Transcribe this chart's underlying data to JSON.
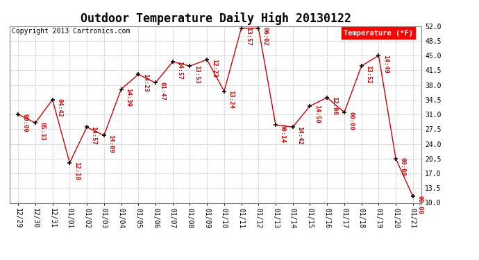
{
  "title": "Outdoor Temperature Daily High 20130122",
  "copyright": "Copyright 2013 Cartronics.com",
  "legend_label": "Temperature (°F)",
  "x_labels": [
    "12/29",
    "12/30",
    "12/31",
    "01/01",
    "01/02",
    "01/03",
    "01/04",
    "01/05",
    "01/06",
    "01/07",
    "01/08",
    "01/09",
    "01/10",
    "01/11",
    "01/12",
    "01/13",
    "01/14",
    "01/15",
    "01/16",
    "01/17",
    "01/18",
    "01/19",
    "01/20",
    "01/21"
  ],
  "y_values": [
    31.0,
    29.0,
    34.5,
    19.5,
    28.0,
    26.0,
    37.0,
    40.5,
    38.5,
    43.5,
    42.5,
    44.0,
    36.5,
    51.5,
    51.5,
    28.5,
    28.0,
    33.0,
    35.0,
    31.5,
    42.5,
    45.0,
    20.5,
    11.5
  ],
  "point_labels": [
    "00:00",
    "05:33",
    "04:42",
    "12:18",
    "14:57",
    "14:09",
    "14:39",
    "14:23",
    "01:47",
    "14:57",
    "13:53",
    "12:23",
    "13:24",
    "13:57",
    "06:02",
    "00:14",
    "14:42",
    "14:50",
    "12:06",
    "00:00",
    "13:52",
    "14:49",
    "00:00",
    "00:00"
  ],
  "highlight_index": 14,
  "line_color": "#cc0000",
  "marker_color": "#000000",
  "label_color": "#cc0000",
  "bg_color": "#ffffff",
  "grid_color": "#c8c8c8",
  "ylim_min": 10.0,
  "ylim_max": 52.0,
  "ytick_values": [
    10.0,
    13.5,
    17.0,
    20.5,
    24.0,
    27.5,
    31.0,
    34.5,
    38.0,
    41.5,
    45.0,
    48.5,
    52.0
  ],
  "title_fontsize": 12,
  "tick_fontsize": 7,
  "label_fontsize": 6.5,
  "copyright_fontsize": 7
}
